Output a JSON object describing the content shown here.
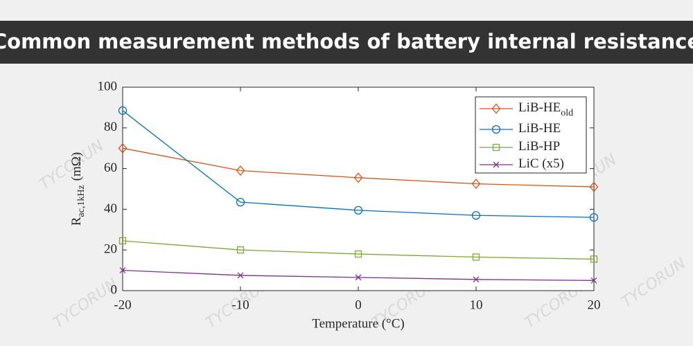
{
  "header": {
    "title": "Common measurement methods of battery internal resistance"
  },
  "watermark": "TYCORUN",
  "chart_data": {
    "type": "line",
    "xlabel": "Temperature (°C)",
    "ylabel": {
      "main": "R",
      "sub": "ac,1kHz",
      "unit": "(mΩ)"
    },
    "x": [
      -20,
      -10,
      0,
      10,
      20
    ],
    "xlim": [
      -20,
      20
    ],
    "xticks": [
      -20,
      -10,
      0,
      10,
      20
    ],
    "ylim": [
      0,
      100
    ],
    "yticks": [
      0,
      20,
      40,
      60,
      80,
      100
    ],
    "grid": false,
    "legend": "upper right",
    "series": [
      {
        "name": "LiB-HE",
        "name_sub": "old",
        "color": "#d95319",
        "marker": "diamond",
        "values": [
          70,
          59,
          55.5,
          52.5,
          51
        ]
      },
      {
        "name": "LiB-HE",
        "color": "#0072bd",
        "marker": "circle",
        "values": [
          88.5,
          43.5,
          39.5,
          37,
          36
        ]
      },
      {
        "name": "LiB-HP",
        "color": "#77ac30",
        "marker": "square",
        "values": [
          24.5,
          20,
          18,
          16.5,
          15.5
        ]
      },
      {
        "name": "LiC (x5)",
        "color": "#7e2f8e",
        "marker": "x",
        "values": [
          10,
          7.5,
          6.5,
          5.5,
          5
        ]
      }
    ]
  }
}
